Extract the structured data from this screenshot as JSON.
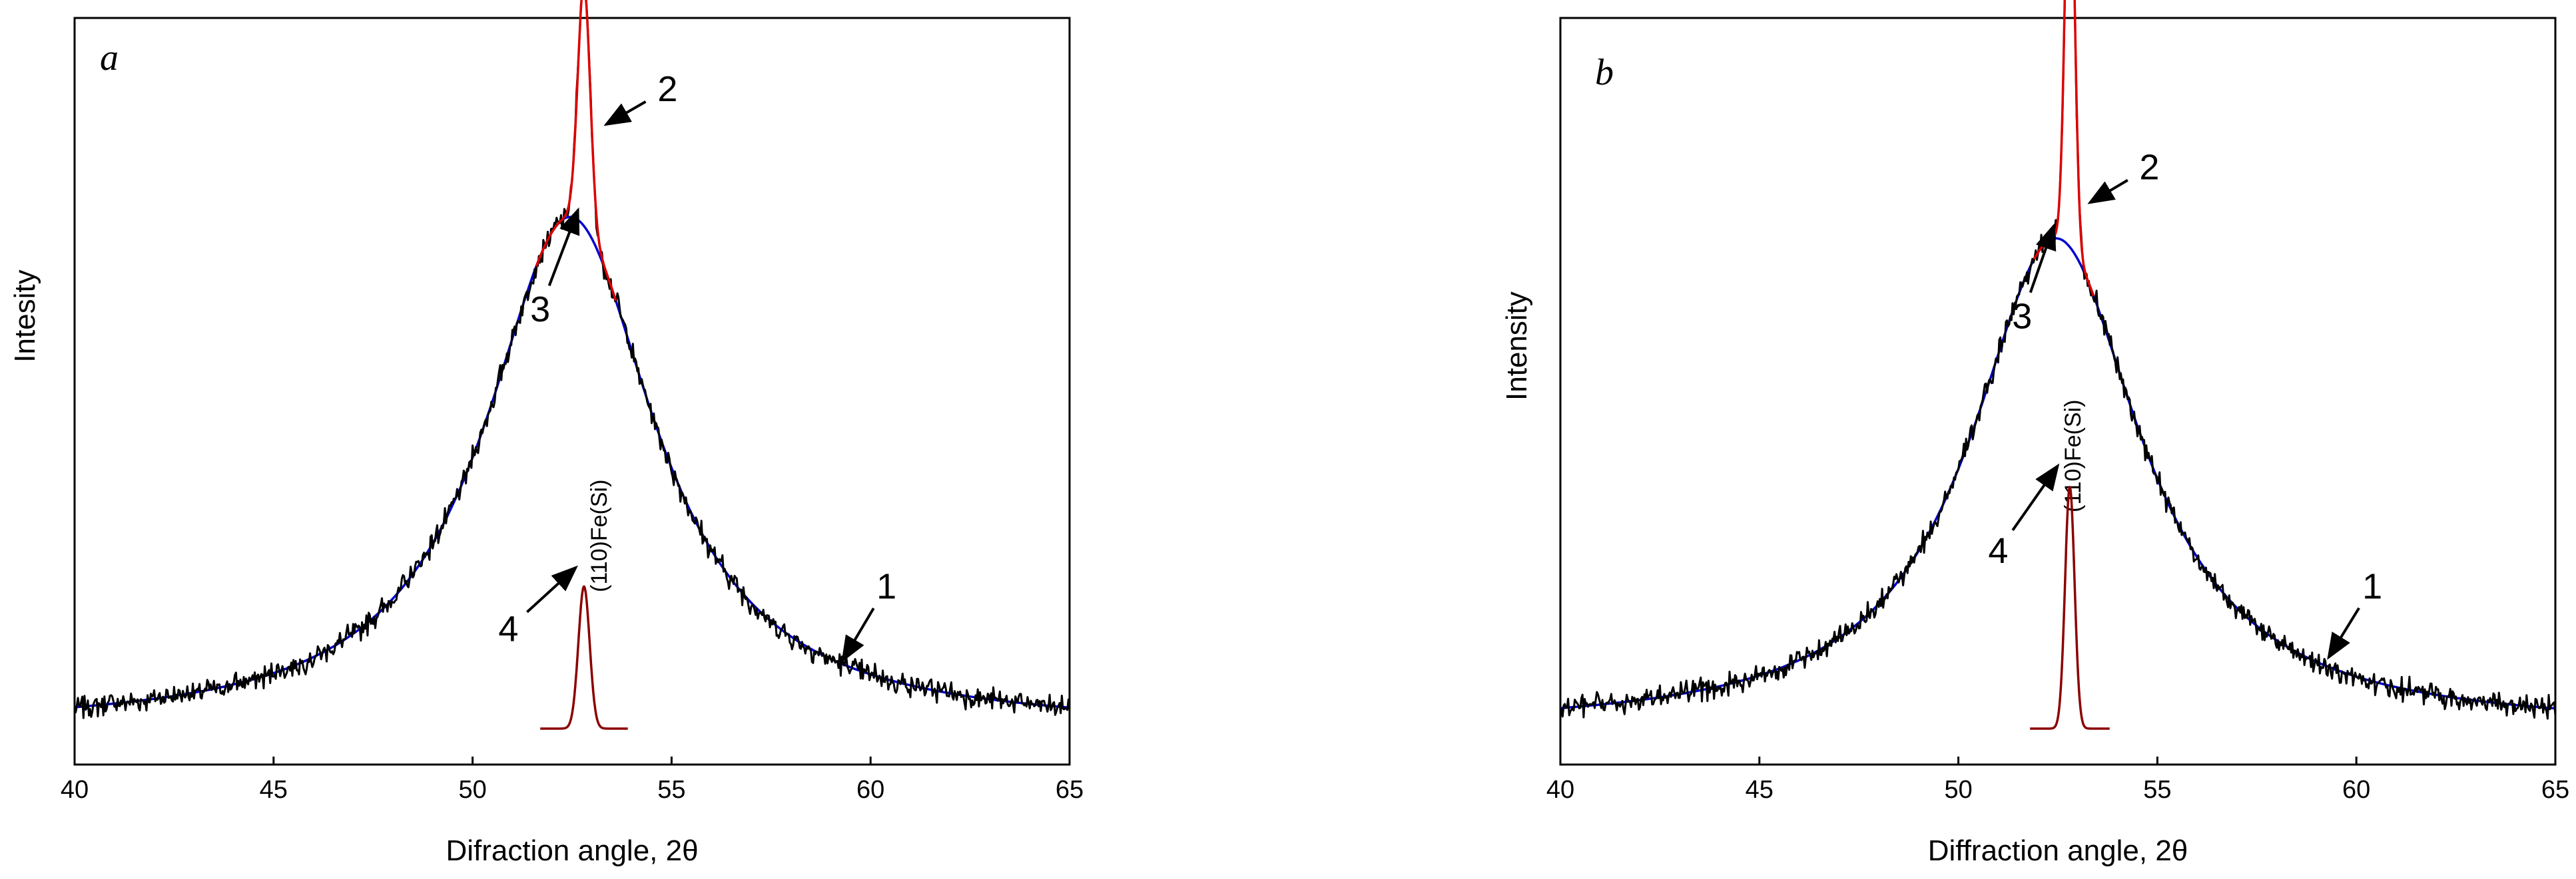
{
  "chart_data": [
    {
      "type": "line",
      "panel_label": "a",
      "xlabel": "Difraction angle, 2θ",
      "ylabel": "Intesity",
      "xlim": [
        40,
        65
      ],
      "xticks": [
        "40",
        "45",
        "50",
        "55",
        "60",
        "65"
      ],
      "series": [
        {
          "key": "1",
          "color": "#000000",
          "center": 52.45,
          "wide_width": 2.6,
          "wide_height": 0.72,
          "sharp_height": 0.34,
          "sharp_width": 0.22,
          "noise": 0.012
        },
        {
          "key": "2",
          "color": "#dd0000",
          "center": 52.8,
          "height": 0.34,
          "width": 0.22,
          "range": [
            51.6,
            53.6
          ]
        },
        {
          "key": "3",
          "color": "#0000cc",
          "center": 52.45,
          "width": 2.6,
          "height": 0.72
        },
        {
          "key": "4",
          "color": "#8b0000",
          "center": 52.8,
          "height": 0.2,
          "width": 0.2,
          "range": [
            51.7,
            53.9
          ]
        }
      ],
      "annotations": [
        {
          "text": "1",
          "arrow_tip": [
            59.3,
            0.096
          ],
          "text_at": [
            60.4,
            0.2
          ]
        },
        {
          "text": "2",
          "arrow_tip": [
            53.35,
            0.85
          ],
          "text_at": [
            54.9,
            0.9
          ]
        },
        {
          "text": "3",
          "arrow_tip": [
            52.65,
            0.73
          ],
          "text_at": [
            51.7,
            0.59
          ]
        },
        {
          "text": "4",
          "arrow_tip": [
            52.6,
            0.227
          ],
          "text_at": [
            50.9,
            0.14
          ]
        }
      ],
      "peak_label": "(110)Fe(Si)"
    },
    {
      "type": "line",
      "panel_label": "b",
      "xlabel": "Diffraction angle, 2θ",
      "ylabel": "Intensity",
      "xlim": [
        40,
        65
      ],
      "xticks": [
        "40",
        "45",
        "50",
        "55",
        "60",
        "65"
      ],
      "series": [
        {
          "key": "1",
          "color": "#000000",
          "center": 52.45,
          "wide_width": 2.6,
          "wide_height": 0.69,
          "sharp_height": 0.6,
          "sharp_width": 0.17,
          "noise": 0.012
        },
        {
          "key": "2",
          "color": "#dd0000",
          "center": 52.8,
          "height": 0.6,
          "width": 0.17,
          "range": [
            51.9,
            53.4
          ]
        },
        {
          "key": "3",
          "color": "#0000cc",
          "center": 52.45,
          "width": 2.6,
          "height": 0.69
        },
        {
          "key": "4",
          "color": "#8b0000",
          "center": 52.8,
          "height": 0.34,
          "width": 0.17,
          "range": [
            51.8,
            53.8
          ]
        }
      ],
      "annotations": [
        {
          "text": "1",
          "arrow_tip": [
            59.3,
            0.1
          ],
          "text_at": [
            60.4,
            0.2
          ]
        },
        {
          "text": "2",
          "arrow_tip": [
            53.3,
            0.74
          ],
          "text_at": [
            54.8,
            0.79
          ]
        },
        {
          "text": "3",
          "arrow_tip": [
            52.4,
            0.708
          ],
          "text_at": [
            51.6,
            0.58
          ]
        },
        {
          "text": "4",
          "arrow_tip": [
            52.5,
            0.37
          ],
          "text_at": [
            51.0,
            0.25
          ]
        }
      ],
      "peak_label": "(110)Fe(Si)"
    }
  ]
}
